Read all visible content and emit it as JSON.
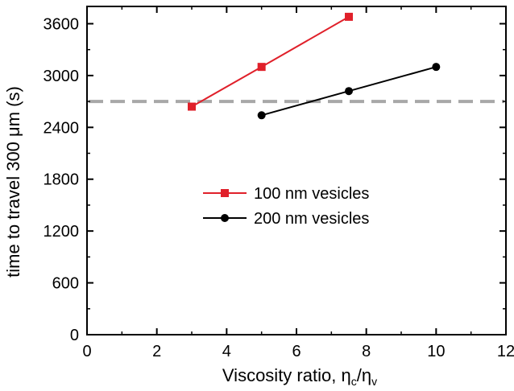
{
  "chart_data": {
    "type": "line",
    "xlabel": {
      "main": "Viscosity ratio, ",
      "eta1": "η",
      "sub1": "c",
      "slash": "/",
      "eta2": "η",
      "sub2": "v"
    },
    "ylabel": {
      "main": "time to travel 300 ",
      "mu": "μ",
      "unit": "m (s)"
    },
    "xlim": [
      0,
      12
    ],
    "ylim": [
      0,
      3800
    ],
    "xticks": [
      0,
      2,
      4,
      6,
      8,
      10,
      12
    ],
    "yticks": [
      0,
      600,
      1200,
      1800,
      2400,
      3000,
      3600
    ],
    "xtick_labels": [
      "0",
      "2",
      "4",
      "6",
      "8",
      "10",
      "12"
    ],
    "ytick_labels": [
      "0",
      "600",
      "1200",
      "1800",
      "2400",
      "3000",
      "3600"
    ],
    "grid": false,
    "legend_position": "center-right",
    "series": [
      {
        "name": "100 nm vesicles",
        "color": "#e0202a",
        "marker": "square",
        "x": [
          3,
          5,
          7.5
        ],
        "y": [
          2640,
          3100,
          3680
        ]
      },
      {
        "name": "200 nm vesicles",
        "color": "#000000",
        "marker": "circle",
        "x": [
          5,
          7.5,
          10
        ],
        "y": [
          2540,
          2820,
          3100
        ]
      }
    ],
    "reference_line": {
      "y": 2700,
      "color": "#a8a8a8",
      "style": "dashed"
    }
  }
}
